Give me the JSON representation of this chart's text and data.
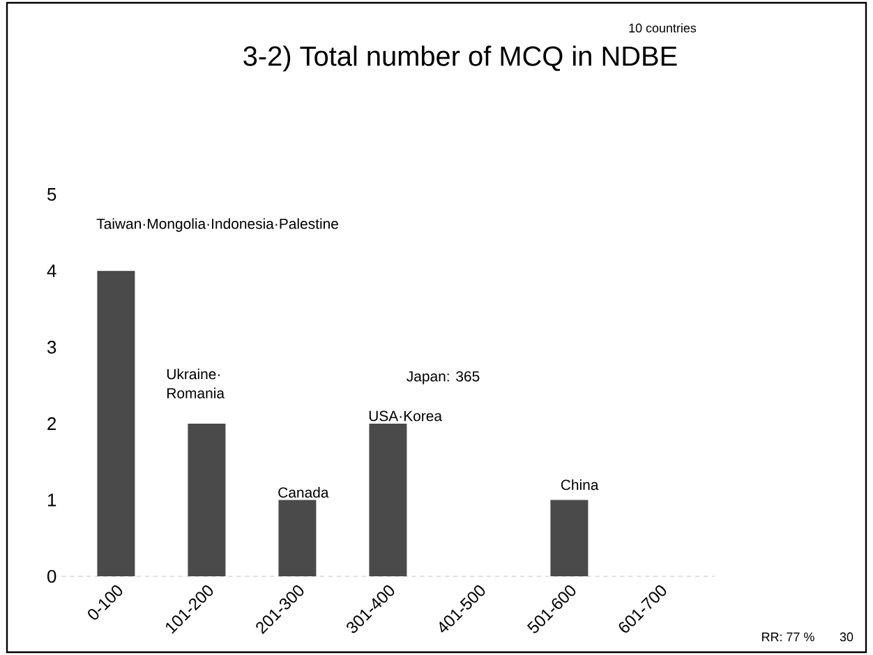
{
  "chart_data": {
    "type": "bar",
    "title": "3-2) Total number of MCQ in NDBE",
    "categories": [
      "0-100",
      "101-200",
      "201-300",
      "301-400",
      "401-500",
      "501-600",
      "601-700"
    ],
    "values": [
      4,
      2,
      1,
      2,
      0,
      1,
      0
    ],
    "color": "#4a4a4a",
    "ylim": [
      0,
      5
    ],
    "yticks": [
      0,
      1,
      2,
      3,
      4,
      5
    ],
    "annotations": [
      "Taiwan·Mongolia·Indonesia·Palestine",
      "Ukraine·",
      "Romania",
      "Canada",
      "Japan: 365",
      "USA·Korea",
      "China",
      "10 countries",
      "RR: 77 %",
      "30"
    ]
  }
}
